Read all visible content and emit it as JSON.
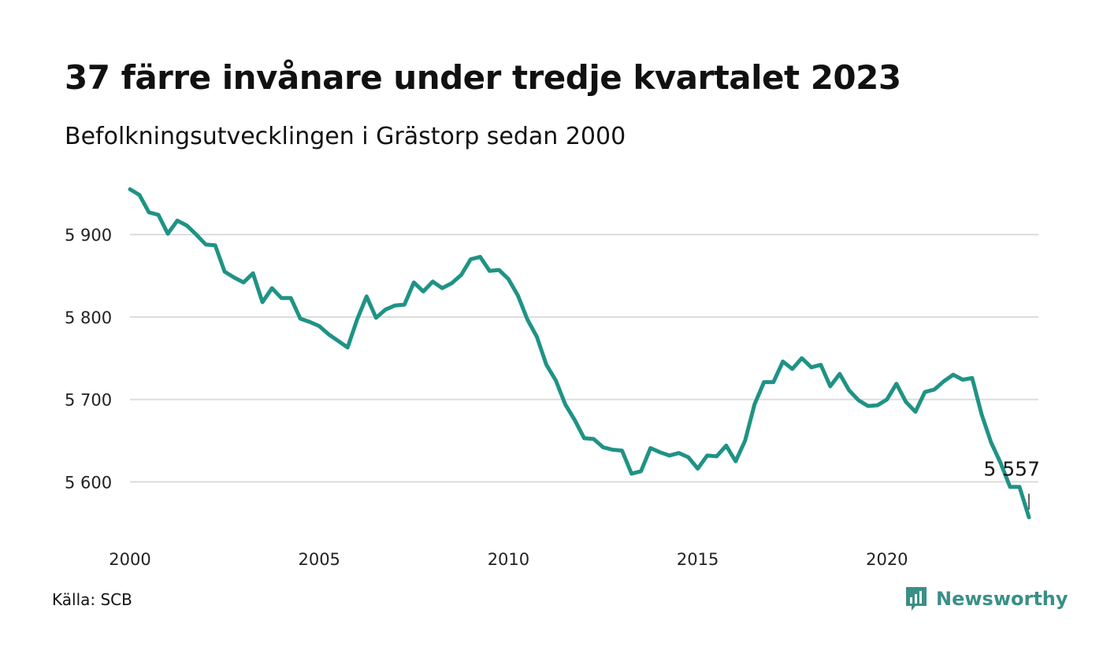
{
  "title": "37 färre invånare under tredje kvartalet 2023",
  "subtitle": "Befolkningsutvecklingen i Grästorp sedan 2000",
  "source": "Källa: SCB",
  "brand": {
    "name": "Newsworthy",
    "icon": "newsworthy-logo-icon",
    "color": "#3a8f86"
  },
  "chart_data": {
    "type": "line",
    "title": "37 färre invånare under tredje kvartalet 2023",
    "subtitle": "Befolkningsutvecklingen i Grästorp sedan 2000",
    "xlabel": "",
    "ylabel": "",
    "xlim": [
      2000,
      2024
    ],
    "ylim": [
      5545,
      5965
    ],
    "x_ticks": [
      2000,
      2005,
      2010,
      2015,
      2020
    ],
    "x_tick_labels": [
      "2000",
      "2005",
      "2010",
      "2015",
      "2020"
    ],
    "y_ticks": [
      5600,
      5700,
      5800,
      5900
    ],
    "y_tick_labels": [
      "5 600",
      "5 700",
      "5 800",
      "5 900"
    ],
    "grid": "horizontal",
    "line_color": "#1f9385",
    "end_label": "5 557",
    "series": [
      {
        "x": [
          2000.0,
          2000.25,
          2000.5,
          2000.75,
          2001.0,
          2001.25,
          2001.5,
          2001.75,
          2002.0,
          2002.25,
          2002.5,
          2002.75,
          2003.0,
          2003.25,
          2003.5,
          2003.75,
          2004.0,
          2004.25,
          2004.5,
          2004.75,
          2005.0,
          2005.25,
          2005.5,
          2005.75,
          2006.0,
          2006.25,
          2006.5,
          2006.75,
          2007.0,
          2007.25,
          2007.5,
          2007.75,
          2008.0,
          2008.25,
          2008.5,
          2008.75,
          2009.0,
          2009.25,
          2009.5,
          2009.75,
          2010.0,
          2010.25,
          2010.5,
          2010.75,
          2011.0,
          2011.25,
          2011.5,
          2011.75,
          2012.0,
          2012.25,
          2012.5,
          2012.75,
          2013.0,
          2013.25,
          2013.5,
          2013.75,
          2014.0,
          2014.25,
          2014.5,
          2014.75,
          2015.0,
          2015.25,
          2015.5,
          2015.75,
          2016.0,
          2016.25,
          2016.5,
          2016.75,
          2017.0,
          2017.25,
          2017.5,
          2017.75,
          2018.0,
          2018.25,
          2018.5,
          2018.75,
          2019.0,
          2019.25,
          2019.5,
          2019.75,
          2020.0,
          2020.25,
          2020.5,
          2020.75,
          2021.0,
          2021.25,
          2021.5,
          2021.75,
          2022.0,
          2022.25,
          2022.5,
          2022.75,
          2023.0,
          2023.25,
          2023.5,
          2023.75
        ],
        "values": [
          5955,
          5948,
          5927,
          5924,
          5901,
          5917,
          5911,
          5900,
          5888,
          5887,
          5855,
          5848,
          5842,
          5853,
          5818,
          5835,
          5823,
          5823,
          5798,
          5794,
          5789,
          5779,
          5771,
          5763,
          5797,
          5825,
          5799,
          5809,
          5814,
          5815,
          5842,
          5831,
          5843,
          5835,
          5841,
          5851,
          5870,
          5873,
          5856,
          5857,
          5846,
          5826,
          5797,
          5776,
          5742,
          5723,
          5694,
          5675,
          5653,
          5652,
          5642,
          5639,
          5638,
          5610,
          5613,
          5641,
          5636,
          5632,
          5635,
          5630,
          5616,
          5632,
          5631,
          5644,
          5625,
          5650,
          5694,
          5721,
          5721,
          5746,
          5737,
          5750,
          5739,
          5742,
          5716,
          5731,
          5711,
          5699,
          5692,
          5693,
          5700,
          5719,
          5697,
          5685,
          5709,
          5712,
          5722,
          5730,
          5724,
          5726,
          5682,
          5648,
          5623,
          5594,
          5594,
          5557
        ]
      }
    ]
  }
}
